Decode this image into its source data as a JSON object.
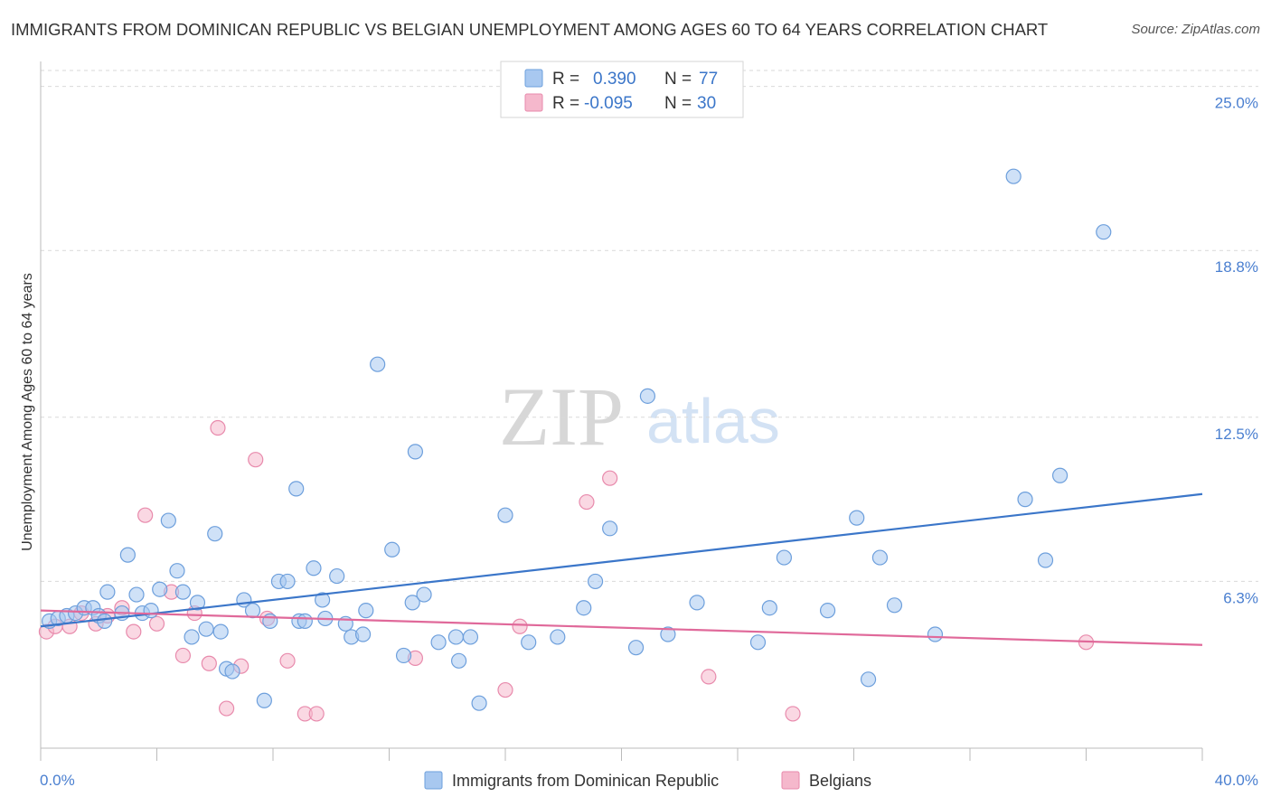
{
  "title": "IMMIGRANTS FROM DOMINICAN REPUBLIC VS BELGIAN UNEMPLOYMENT AMONG AGES 60 TO 64 YEARS CORRELATION CHART",
  "source": "Source: ZipAtlas.com",
  "watermark": {
    "zip": "ZIP",
    "atlas": "atlas"
  },
  "colors": {
    "blue": "#3b76c9",
    "blue_fill": "#a8c8f0",
    "blue_stroke": "#6d9fdc",
    "pink": "#e0699a",
    "pink_fill": "#f5b8cc",
    "pink_stroke": "#e88aac",
    "grid": "#d9d9d9",
    "axis": "#bbbbbb"
  },
  "legend": {
    "rows": [
      {
        "r_label": "R =",
        "r_value": "0.390",
        "n_label": "N =",
        "n_value": "77",
        "color": "blue"
      },
      {
        "r_label": "R =",
        "r_value": "-0.095",
        "n_label": "N =",
        "n_value": "30",
        "color": "pink"
      }
    ]
  },
  "bottom_legend": [
    {
      "label": "Immigrants from Dominican Republic",
      "color": "blue"
    },
    {
      "label": "Belgians",
      "color": "pink"
    }
  ],
  "chart_data": {
    "type": "scatter",
    "title": "IMMIGRANTS FROM DOMINICAN REPUBLIC VS BELGIAN UNEMPLOYMENT AMONG AGES 60 TO 64 YEARS CORRELATION CHART",
    "xlabel": "",
    "ylabel": "Unemployment Among Ages 60 to 64 years",
    "xlim": [
      0,
      40
    ],
    "ylim": [
      0,
      25.6
    ],
    "x_tick_labels": [
      "0.0%",
      "40.0%"
    ],
    "y_ticks": [
      6.3,
      12.5,
      18.8,
      25.0
    ],
    "y_tick_labels": [
      "6.3%",
      "12.5%",
      "18.8%",
      "25.0%"
    ],
    "grid": "horizontal dashed",
    "legend_position": "top-center",
    "series": [
      {
        "name": "Immigrants from Dominican Republic",
        "color": "blue",
        "trend": {
          "x0": 0,
          "y0": 4.6,
          "x1": 40,
          "y1": 9.6
        },
        "points": [
          [
            0.3,
            4.8
          ],
          [
            0.6,
            4.9
          ],
          [
            0.9,
            5.0
          ],
          [
            1.2,
            5.1
          ],
          [
            1.5,
            5.3
          ],
          [
            1.8,
            5.3
          ],
          [
            2.0,
            5.0
          ],
          [
            2.2,
            4.8
          ],
          [
            2.3,
            5.9
          ],
          [
            2.8,
            5.1
          ],
          [
            3.0,
            7.3
          ],
          [
            3.3,
            5.8
          ],
          [
            3.5,
            5.1
          ],
          [
            3.8,
            5.2
          ],
          [
            4.1,
            6.0
          ],
          [
            4.4,
            8.6
          ],
          [
            4.7,
            6.7
          ],
          [
            4.9,
            5.9
          ],
          [
            5.2,
            4.2
          ],
          [
            5.4,
            5.5
          ],
          [
            5.7,
            4.5
          ],
          [
            6.0,
            8.1
          ],
          [
            6.2,
            4.4
          ],
          [
            6.4,
            3.0
          ],
          [
            6.6,
            2.9
          ],
          [
            7.0,
            5.6
          ],
          [
            7.3,
            5.2
          ],
          [
            7.7,
            1.8
          ],
          [
            7.9,
            4.8
          ],
          [
            8.2,
            6.3
          ],
          [
            8.5,
            6.3
          ],
          [
            8.8,
            9.8
          ],
          [
            8.9,
            4.8
          ],
          [
            9.1,
            4.8
          ],
          [
            9.4,
            6.8
          ],
          [
            9.7,
            5.6
          ],
          [
            9.8,
            4.9
          ],
          [
            10.2,
            6.5
          ],
          [
            10.5,
            4.7
          ],
          [
            10.7,
            4.2
          ],
          [
            11.1,
            4.3
          ],
          [
            11.2,
            5.2
          ],
          [
            11.6,
            14.5
          ],
          [
            12.1,
            7.5
          ],
          [
            12.5,
            3.5
          ],
          [
            12.8,
            5.5
          ],
          [
            12.9,
            11.2
          ],
          [
            13.2,
            5.8
          ],
          [
            13.7,
            4.0
          ],
          [
            14.3,
            4.2
          ],
          [
            14.4,
            3.3
          ],
          [
            14.8,
            4.2
          ],
          [
            15.1,
            1.7
          ],
          [
            16.0,
            8.8
          ],
          [
            16.8,
            4.0
          ],
          [
            17.8,
            4.2
          ],
          [
            18.7,
            5.3
          ],
          [
            19.1,
            6.3
          ],
          [
            19.6,
            8.3
          ],
          [
            20.5,
            3.8
          ],
          [
            20.9,
            13.3
          ],
          [
            21.6,
            4.3
          ],
          [
            22.6,
            5.5
          ],
          [
            24.7,
            4.0
          ],
          [
            25.1,
            5.3
          ],
          [
            25.6,
            7.2
          ],
          [
            27.1,
            5.2
          ],
          [
            28.1,
            8.7
          ],
          [
            28.5,
            2.6
          ],
          [
            28.9,
            7.2
          ],
          [
            29.4,
            5.4
          ],
          [
            30.8,
            4.3
          ],
          [
            33.5,
            21.6
          ],
          [
            33.9,
            9.4
          ],
          [
            34.6,
            7.1
          ],
          [
            35.1,
            10.3
          ],
          [
            36.6,
            19.5
          ]
        ]
      },
      {
        "name": "Belgians",
        "color": "pink",
        "trend": {
          "x0": 0,
          "y0": 5.2,
          "x1": 40,
          "y1": 3.9
        },
        "points": [
          [
            0.2,
            4.4
          ],
          [
            0.5,
            4.6
          ],
          [
            1.0,
            4.6
          ],
          [
            1.4,
            5.1
          ],
          [
            1.9,
            4.7
          ],
          [
            2.3,
            5.0
          ],
          [
            2.8,
            5.3
          ],
          [
            3.2,
            4.4
          ],
          [
            3.6,
            8.8
          ],
          [
            4.0,
            4.7
          ],
          [
            4.5,
            5.9
          ],
          [
            4.9,
            3.5
          ],
          [
            5.3,
            5.1
          ],
          [
            5.8,
            3.2
          ],
          [
            6.1,
            12.1
          ],
          [
            6.4,
            1.5
          ],
          [
            6.9,
            3.1
          ],
          [
            7.4,
            10.9
          ],
          [
            7.8,
            4.9
          ],
          [
            8.5,
            3.3
          ],
          [
            9.1,
            1.3
          ],
          [
            9.5,
            1.3
          ],
          [
            12.9,
            3.4
          ],
          [
            16.0,
            2.2
          ],
          [
            16.5,
            4.6
          ],
          [
            18.8,
            9.3
          ],
          [
            19.6,
            10.2
          ],
          [
            23.0,
            2.7
          ],
          [
            25.9,
            1.3
          ],
          [
            36.0,
            4.0
          ]
        ]
      }
    ]
  }
}
